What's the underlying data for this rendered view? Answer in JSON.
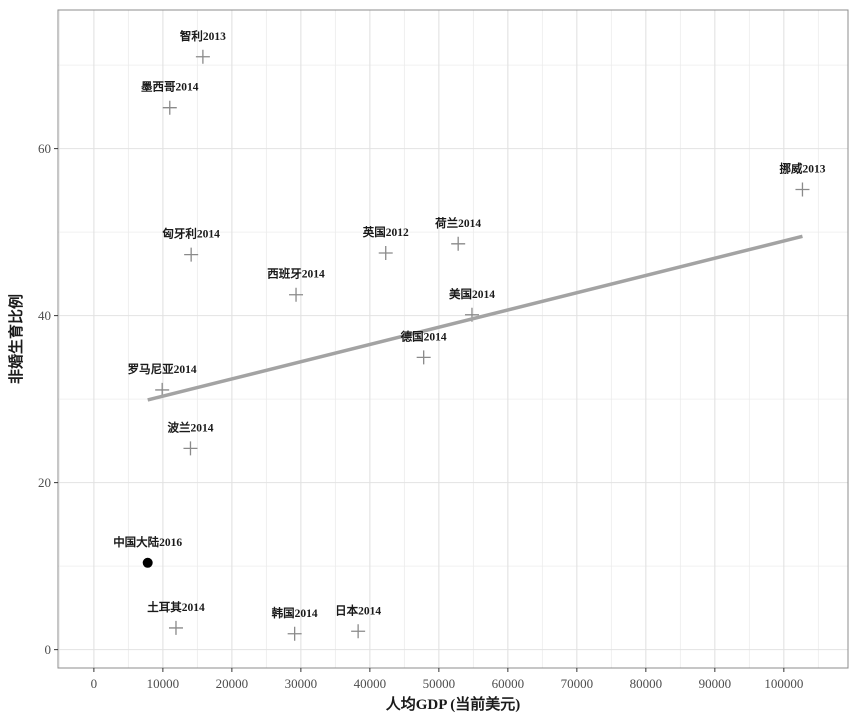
{
  "chart_data": {
    "type": "scatter",
    "xlabel": "人均GDP (当前美元)",
    "ylabel": "非婚生育比例",
    "xlim": [
      -5200,
      109300
    ],
    "ylim": [
      -2.2,
      76.6
    ],
    "x_ticks": [
      0,
      10000,
      20000,
      30000,
      40000,
      50000,
      60000,
      70000,
      80000,
      90000,
      100000
    ],
    "y_ticks": [
      0,
      20,
      40,
      60
    ],
    "grid": true,
    "points": [
      {
        "label": "智利2013",
        "x": 15800,
        "y": 71.0,
        "highlight": false
      },
      {
        "label": "墨西哥2014",
        "x": 11000,
        "y": 64.9,
        "highlight": false
      },
      {
        "label": "挪威2013",
        "x": 102700,
        "y": 55.1,
        "highlight": false
      },
      {
        "label": "匈牙利2014",
        "x": 14100,
        "y": 47.3,
        "highlight": false
      },
      {
        "label": "英国2012",
        "x": 42300,
        "y": 47.5,
        "highlight": false
      },
      {
        "label": "荷兰2014",
        "x": 52800,
        "y": 48.6,
        "highlight": false
      },
      {
        "label": "西班牙2014",
        "x": 29300,
        "y": 42.5,
        "highlight": false
      },
      {
        "label": "美国2014",
        "x": 54800,
        "y": 40.1,
        "highlight": false
      },
      {
        "label": "德国2014",
        "x": 47800,
        "y": 35.0,
        "highlight": false
      },
      {
        "label": "罗马尼亚2014",
        "x": 9900,
        "y": 31.1,
        "highlight": false
      },
      {
        "label": "波兰2014",
        "x": 14000,
        "y": 24.1,
        "highlight": false
      },
      {
        "label": "中国大陆2016",
        "x": 7800,
        "y": 10.4,
        "highlight": true
      },
      {
        "label": "土耳其2014",
        "x": 11900,
        "y": 2.6,
        "highlight": false
      },
      {
        "label": "韩国2014",
        "x": 29100,
        "y": 1.9,
        "highlight": false
      },
      {
        "label": "日本2014",
        "x": 38300,
        "y": 2.2,
        "highlight": false
      }
    ],
    "trend_line": {
      "x": [
        7800,
        102700
      ],
      "y": [
        29.9,
        49.5
      ]
    },
    "colors": {
      "points": "#8a8a8a",
      "highlight": "#000000",
      "trend_line": "#a3a3a3",
      "grid_major": "#e2e2e2",
      "grid_minor": "#ececec",
      "panel_border": "#8c8c8c",
      "axis_ticks": "#333333"
    }
  }
}
